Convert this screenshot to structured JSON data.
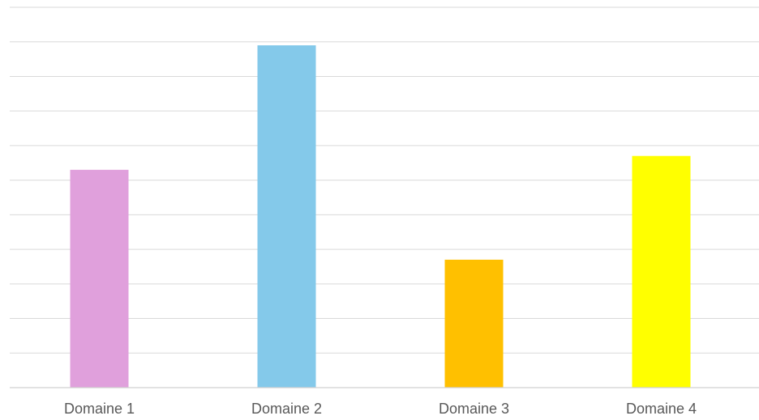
{
  "chart_data": {
    "type": "bar",
    "categories": [
      "Domaine 1",
      "Domaine 2",
      "Domaine 3",
      "Domaine 4"
    ],
    "values": [
      6.3,
      9.9,
      3.7,
      6.7
    ],
    "colors": [
      "#e0a0dc",
      "#84c9ea",
      "#ffc000",
      "#ffff00"
    ],
    "ylim": [
      0,
      11
    ],
    "gridlines": 11,
    "grid": true,
    "legend": "none",
    "title": "",
    "xlabel": "",
    "ylabel": ""
  }
}
